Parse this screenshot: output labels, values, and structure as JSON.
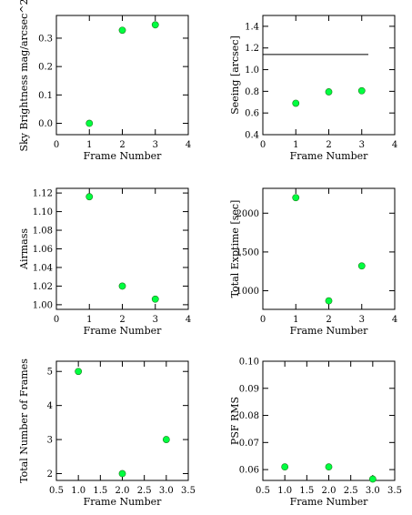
{
  "colors": {
    "point": "#00ff40",
    "point_edge": "#1a7a1a",
    "axes": "#000000",
    "ref_line": "#000000"
  },
  "chart_data": [
    {
      "type": "scatter",
      "xlabel": "Frame Number",
      "ylabel": "Sky Brightness mag/arcsec^2",
      "xlim": [
        0,
        4
      ],
      "ylim": [
        -0.04,
        0.38
      ],
      "xticks": [
        0,
        1,
        2,
        3,
        4
      ],
      "xtick_labels": [
        "0",
        "1",
        "2",
        "3",
        "4"
      ],
      "yticks": [
        0.0,
        0.1,
        0.2,
        0.3
      ],
      "ytick_labels": [
        "0.0",
        "0.1",
        "0.2",
        "0.3"
      ],
      "x": [
        1,
        2,
        3
      ],
      "y": [
        0.0,
        0.328,
        0.347
      ]
    },
    {
      "type": "scatter",
      "xlabel": "Frame Number",
      "ylabel": "Seeing [arcsec]",
      "xlim": [
        0,
        4
      ],
      "ylim": [
        0.4,
        1.5
      ],
      "xticks": [
        0,
        1,
        2,
        3,
        4
      ],
      "xtick_labels": [
        "0",
        "1",
        "2",
        "3",
        "4"
      ],
      "yticks": [
        0.4,
        0.6,
        0.8,
        1.0,
        1.2,
        1.4
      ],
      "ytick_labels": [
        "0.4",
        "0.6",
        "0.8",
        "1.0",
        "1.2",
        "1.4"
      ],
      "x": [
        1,
        2,
        3
      ],
      "y": [
        0.69,
        0.795,
        0.805
      ],
      "reference_line": {
        "y": 1.14,
        "x_start": 0,
        "x_end": 3.2
      }
    },
    {
      "type": "scatter",
      "xlabel": "Frame Number",
      "ylabel": "Airmass",
      "xlim": [
        0,
        4
      ],
      "ylim": [
        0.995,
        1.125
      ],
      "xticks": [
        0,
        1,
        2,
        3,
        4
      ],
      "xtick_labels": [
        "0",
        "1",
        "2",
        "3",
        "4"
      ],
      "yticks": [
        1.0,
        1.02,
        1.04,
        1.06,
        1.08,
        1.1,
        1.12
      ],
      "ytick_labels": [
        "1.00",
        "1.02",
        "1.04",
        "1.06",
        "1.08",
        "1.10",
        "1.12"
      ],
      "x": [
        1,
        2,
        3
      ],
      "y": [
        1.116,
        1.02,
        1.006
      ]
    },
    {
      "type": "scatter",
      "xlabel": "Frame Number",
      "ylabel": "Total Exptime [sec]",
      "xlim": [
        0,
        4
      ],
      "ylim": [
        760,
        2320
      ],
      "xticks": [
        0,
        1,
        2,
        3,
        4
      ],
      "xtick_labels": [
        "0",
        "1",
        "2",
        "3",
        "4"
      ],
      "yticks": [
        1000,
        1500,
        2000
      ],
      "ytick_labels": [
        "1000",
        "1500",
        "2000"
      ],
      "x": [
        1,
        2,
        3
      ],
      "y": [
        2200,
        870,
        1320
      ]
    },
    {
      "type": "scatter",
      "xlabel": "Frame Number",
      "ylabel": "Total Number of Frames",
      "xlim": [
        0.5,
        3.5
      ],
      "ylim": [
        1.8,
        5.3
      ],
      "xticks": [
        0.5,
        1.0,
        1.5,
        2.0,
        2.5,
        3.0,
        3.5
      ],
      "xtick_labels": [
        "0.5",
        "1.0",
        "1.5",
        "2.0",
        "2.5",
        "3.0",
        "3.5"
      ],
      "yticks": [
        2,
        3,
        4,
        5
      ],
      "ytick_labels": [
        "2",
        "3",
        "4",
        "5"
      ],
      "x": [
        1,
        2,
        3
      ],
      "y": [
        5,
        2,
        3
      ]
    },
    {
      "type": "scatter",
      "xlabel": "Frame Number",
      "ylabel": "PSF RMS",
      "xlim": [
        0.5,
        3.5
      ],
      "ylim": [
        0.056,
        0.1
      ],
      "xticks": [
        0.5,
        1.0,
        1.5,
        2.0,
        2.5,
        3.0,
        3.5
      ],
      "xtick_labels": [
        "0.5",
        "1.0",
        "1.5",
        "2.0",
        "2.5",
        "3.0",
        "3.5"
      ],
      "yticks": [
        0.06,
        0.07,
        0.08,
        0.09,
        0.1
      ],
      "ytick_labels": [
        "0.06",
        "0.07",
        "0.08",
        "0.09",
        "0.10"
      ],
      "x": [
        1,
        2,
        3
      ],
      "y": [
        0.061,
        0.061,
        0.0565
      ]
    }
  ]
}
